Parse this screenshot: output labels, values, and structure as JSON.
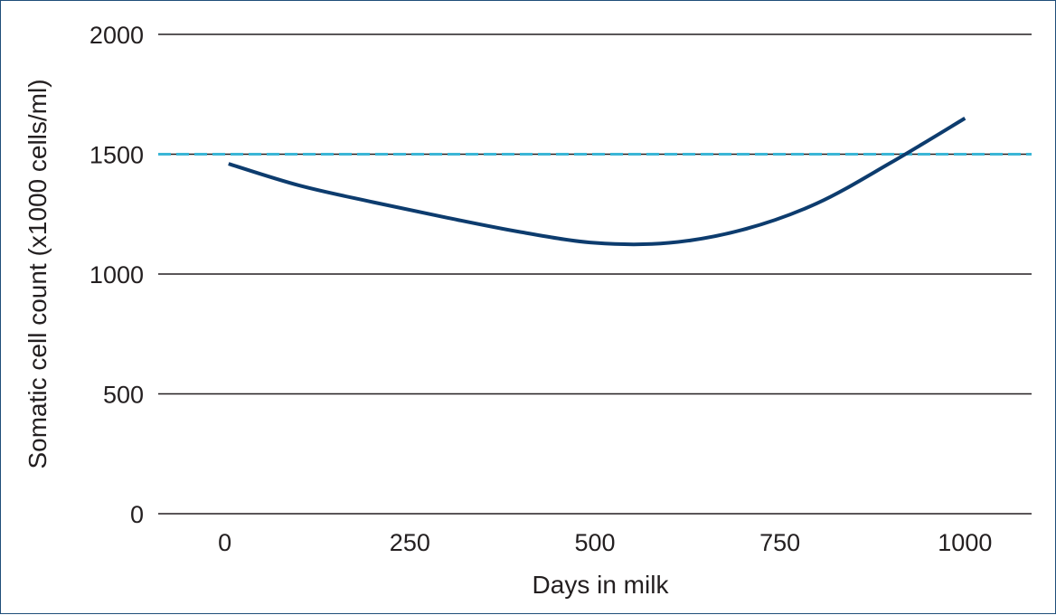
{
  "chart_data": {
    "type": "line",
    "title": "",
    "xlabel": "Days in milk",
    "ylabel": "Somatic cell count (x1000 cells/ml)",
    "xlim": [
      -90,
      1090
    ],
    "ylim": [
      0,
      2000
    ],
    "x_ticks": [
      0,
      250,
      500,
      750,
      1000
    ],
    "y_ticks": [
      0,
      500,
      1000,
      1500,
      2000
    ],
    "grid": "horizontal",
    "legend": "none",
    "series": [
      {
        "color": "#0d3c6e",
        "x": [
          5,
          100,
          200,
          300,
          400,
          500,
          600,
          700,
          800,
          900,
          1000
        ],
        "y": [
          1460,
          1370,
          1300,
          1235,
          1175,
          1130,
          1130,
          1185,
          1295,
          1465,
          1650
        ]
      }
    ],
    "reference_line": {
      "y": 1500,
      "color": "#3bb6d6"
    }
  }
}
